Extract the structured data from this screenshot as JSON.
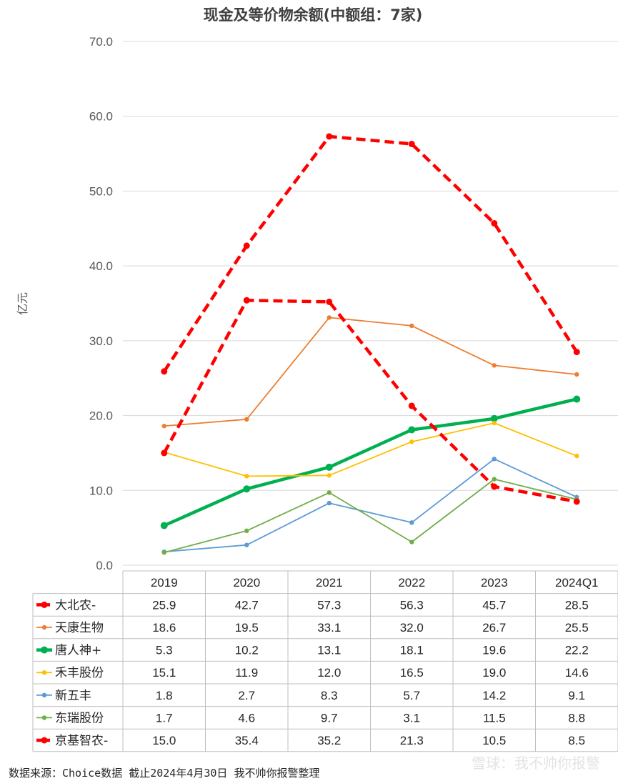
{
  "chart_data": {
    "type": "line",
    "title": "现金及等价物余额(中额组：7家)",
    "ylabel": "亿元",
    "ylim": [
      0,
      70
    ],
    "yticks": [
      "0.0",
      "10.0",
      "20.0",
      "30.0",
      "40.0",
      "50.0",
      "60.0",
      "70.0"
    ],
    "grid": true,
    "legend": "data-table",
    "categories": [
      "2019",
      "2020",
      "2021",
      "2022",
      "2023",
      "2024Q1"
    ],
    "series": [
      {
        "name": "大北农-",
        "color": "#ff0000",
        "style": "dashed-bold",
        "values": [
          25.9,
          42.7,
          57.3,
          56.3,
          45.7,
          28.5
        ],
        "labels": [
          "25.9",
          "42.7",
          "57.3",
          "56.3",
          "45.7",
          "28.5"
        ]
      },
      {
        "name": "天康生物",
        "color": "#ed7d31",
        "style": "thin",
        "values": [
          18.6,
          19.5,
          33.1,
          32.0,
          26.7,
          25.5
        ],
        "labels": [
          "18.6",
          "19.5",
          "33.1",
          "32.0",
          "26.7",
          "25.5"
        ]
      },
      {
        "name": "唐人神+",
        "color": "#00b050",
        "style": "bold",
        "values": [
          5.3,
          10.2,
          13.1,
          18.1,
          19.6,
          22.2
        ],
        "labels": [
          "5.3",
          "10.2",
          "13.1",
          "18.1",
          "19.6",
          "22.2"
        ]
      },
      {
        "name": "禾丰股份",
        "color": "#ffc000",
        "style": "thin",
        "values": [
          15.1,
          11.9,
          12.0,
          16.5,
          19.0,
          14.6
        ],
        "labels": [
          "15.1",
          "11.9",
          "12.0",
          "16.5",
          "19.0",
          "14.6"
        ]
      },
      {
        "name": "新五丰",
        "color": "#5b9bd5",
        "style": "thin",
        "values": [
          1.8,
          2.7,
          8.3,
          5.7,
          14.2,
          9.1
        ],
        "labels": [
          "1.8",
          "2.7",
          "8.3",
          "5.7",
          "14.2",
          "9.1"
        ]
      },
      {
        "name": "东瑞股份",
        "color": "#70ad47",
        "style": "thin",
        "values": [
          1.7,
          4.6,
          9.7,
          3.1,
          11.5,
          8.8
        ],
        "labels": [
          "1.7",
          "4.6",
          "9.7",
          "3.1",
          "11.5",
          "8.8"
        ]
      },
      {
        "name": "京基智农-",
        "color": "#ff0000",
        "style": "dashed-bold",
        "values": [
          15.0,
          35.4,
          35.2,
          21.3,
          10.5,
          8.5
        ],
        "labels": [
          "15.0",
          "35.4",
          "35.2",
          "21.3",
          "10.5",
          "8.5"
        ]
      }
    ]
  },
  "footer": {
    "source": "数据来源：Choice数据  截止2024年4月30日 我不帅你报警整理",
    "watermark": "雪球：我不帅你报警"
  }
}
